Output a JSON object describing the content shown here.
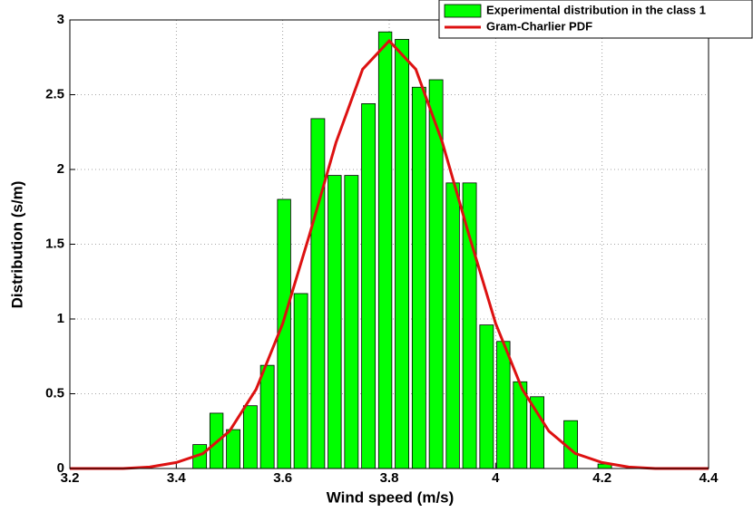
{
  "chart_data": {
    "type": "combo",
    "xlabel": "Wind speed (m/s)",
    "ylabel": "Distribution (s/m)",
    "xlim": [
      3.2,
      4.4
    ],
    "xticks": [
      3.2,
      3.4,
      3.6,
      3.8,
      4,
      4.2,
      4.4
    ],
    "ylim": [
      0,
      3
    ],
    "yticks": [
      0,
      0.5,
      1,
      1.5,
      2,
      2.5,
      3
    ],
    "grid": true,
    "legend": "upper right",
    "layers": [
      {
        "type": "histogram",
        "name": "Experimental distribution in the class 1",
        "color": "#00ff00",
        "bins": [
          3.428,
          3.46,
          3.491,
          3.523,
          3.555,
          3.587,
          3.618,
          3.65,
          3.682,
          3.713,
          3.745,
          3.777,
          3.808,
          3.84,
          3.872,
          3.904,
          3.935,
          3.967,
          3.999,
          4.03,
          4.062,
          4.094,
          4.125,
          4.157,
          4.189,
          4.221
        ],
        "values": [
          0.16,
          0.37,
          0.26,
          0.42,
          0.69,
          1.8,
          1.17,
          2.34,
          1.96,
          1.96,
          2.44,
          2.92,
          2.87,
          2.55,
          2.6,
          1.91,
          1.91,
          0.96,
          0.85,
          0.58,
          0.48,
          0,
          0.32,
          0,
          0.03
        ]
      },
      {
        "type": "line",
        "name": "Gram-Charlier PDF",
        "color": "#dd1111",
        "x": [
          3.2,
          3.25,
          3.3,
          3.35,
          3.4,
          3.45,
          3.5,
          3.55,
          3.6,
          3.65,
          3.7,
          3.75,
          3.8,
          3.85,
          3.9,
          3.95,
          4.0,
          4.05,
          4.1,
          4.15,
          4.2,
          4.25,
          4.3,
          4.35,
          4.4
        ],
        "values": [
          0,
          0,
          0,
          0.01,
          0.04,
          0.1,
          0.25,
          0.53,
          0.97,
          1.56,
          2.18,
          2.67,
          2.86,
          2.67,
          2.18,
          1.56,
          0.97,
          0.53,
          0.25,
          0.1,
          0.04,
          0.01,
          0,
          0,
          0
        ]
      }
    ]
  }
}
